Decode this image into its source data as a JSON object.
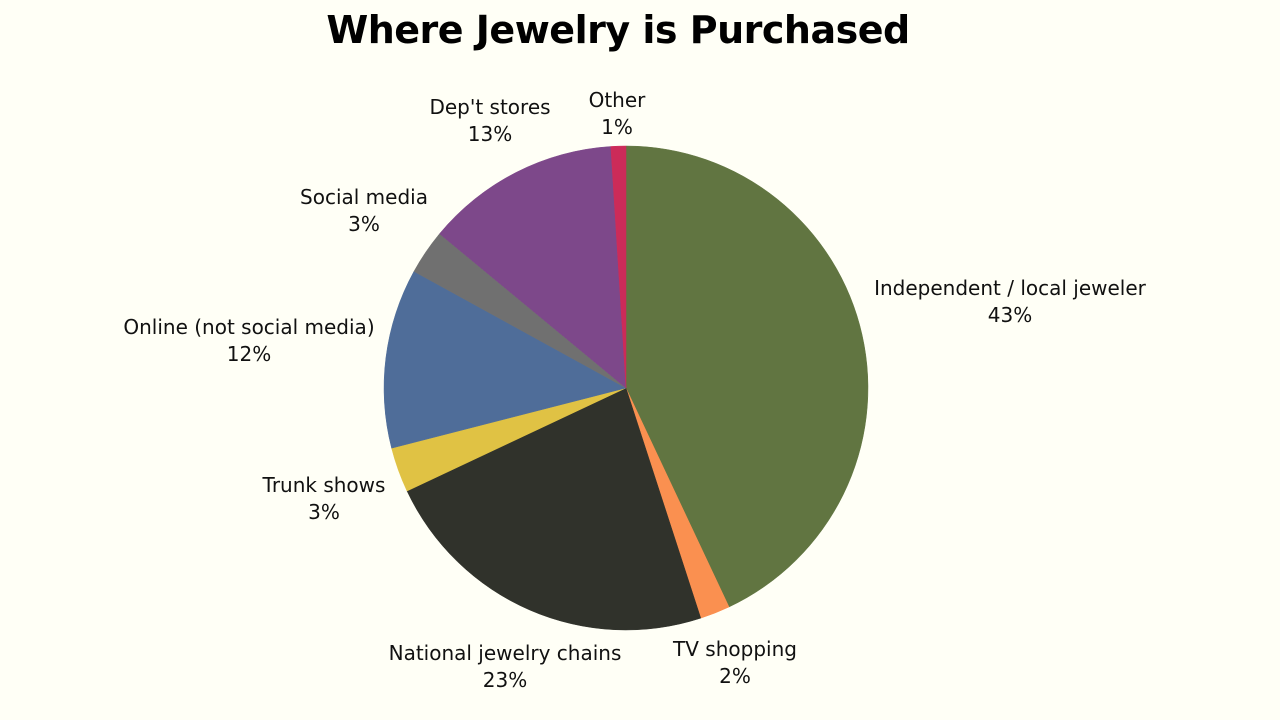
{
  "chart_data": {
    "type": "pie",
    "title": "Where Jewelry is Purchased",
    "slices": [
      {
        "label": "Independent / local jeweler",
        "value": 43,
        "value_label": "43%",
        "color": "#617541"
      },
      {
        "label": "TV shopping",
        "value": 2,
        "value_label": "2%",
        "color": "#fa9050"
      },
      {
        "label": "National jewelry chains",
        "value": 23,
        "value_label": "23%",
        "color": "#30322b"
      },
      {
        "label": "Trunk shows",
        "value": 3,
        "value_label": "3%",
        "color": "#e0c244"
      },
      {
        "label": "Online (not social media)",
        "value": 12,
        "value_label": "12%",
        "color": "#4f6d99"
      },
      {
        "label": "Social media",
        "value": 3,
        "value_label": "3%",
        "color": "#707070"
      },
      {
        "label": "Dep't stores",
        "value": 13,
        "value_label": "13%",
        "color": "#7d488a"
      },
      {
        "label": "Other",
        "value": 1,
        "value_label": "1%",
        "color": "#cc2b59"
      }
    ]
  }
}
